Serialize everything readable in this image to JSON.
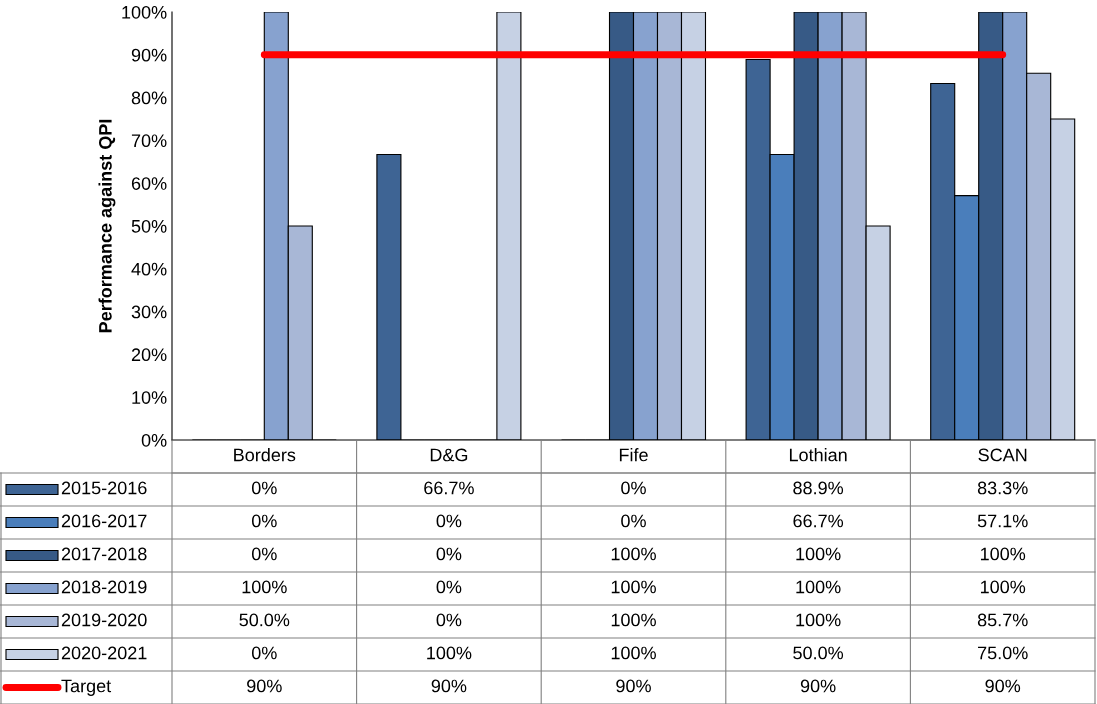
{
  "chart_data": {
    "type": "bar",
    "ylabel": "Performance against QPI",
    "categories": [
      "Borders",
      "D&G",
      "Fife",
      "Lothian",
      "SCAN"
    ],
    "ylim": [
      0,
      100
    ],
    "yticks": [
      {
        "value": 0,
        "label": "0%"
      },
      {
        "value": 10,
        "label": "10%"
      },
      {
        "value": 20,
        "label": "20%"
      },
      {
        "value": 30,
        "label": "30%"
      },
      {
        "value": 40,
        "label": "40%"
      },
      {
        "value": 50,
        "label": "50%"
      },
      {
        "value": 60,
        "label": "60%"
      },
      {
        "value": 70,
        "label": "70%"
      },
      {
        "value": 80,
        "label": "80%"
      },
      {
        "value": 90,
        "label": "90%"
      },
      {
        "value": 100,
        "label": "100%"
      }
    ],
    "grid": false,
    "legend": "bottom",
    "series": [
      {
        "name": "2015-2016",
        "color": "#3e6494",
        "values": [
          0,
          66.7,
          0,
          88.9,
          83.3
        ],
        "value_labels": [
          "0%",
          "66.7%",
          "0%",
          "88.9%",
          "83.3%"
        ]
      },
      {
        "name": "2016-2017",
        "color": "#4a7ebb",
        "values": [
          0,
          0,
          0,
          66.7,
          57.1
        ],
        "value_labels": [
          "0%",
          "0%",
          "0%",
          "66.7%",
          "57.1%"
        ]
      },
      {
        "name": "2017-2018",
        "color": "#375a86",
        "values": [
          0,
          0,
          100,
          100,
          100
        ],
        "value_labels": [
          "0%",
          "0%",
          "100%",
          "100%",
          "100%"
        ]
      },
      {
        "name": "2018-2019",
        "color": "#87a2cf",
        "values": [
          100,
          0,
          100,
          100,
          100
        ],
        "value_labels": [
          "100%",
          "0%",
          "100%",
          "100%",
          "100%"
        ]
      },
      {
        "name": "2019-2020",
        "color": "#a8b7d6",
        "values": [
          50.0,
          0,
          100,
          100,
          85.7
        ],
        "value_labels": [
          "50.0%",
          "0%",
          "100%",
          "100%",
          "85.7%"
        ]
      },
      {
        "name": "2020-2021",
        "color": "#c6d1e4",
        "values": [
          0,
          100,
          100,
          50.0,
          75.0
        ],
        "value_labels": [
          "0%",
          "100%",
          "100%",
          "50.0%",
          "75.0%"
        ]
      },
      {
        "name": "Target",
        "type": "line",
        "color": "#ff0000",
        "values": [
          90,
          90,
          90,
          90,
          90
        ],
        "value_labels": [
          "90%",
          "90%",
          "90%",
          "90%",
          "90%"
        ]
      }
    ]
  }
}
